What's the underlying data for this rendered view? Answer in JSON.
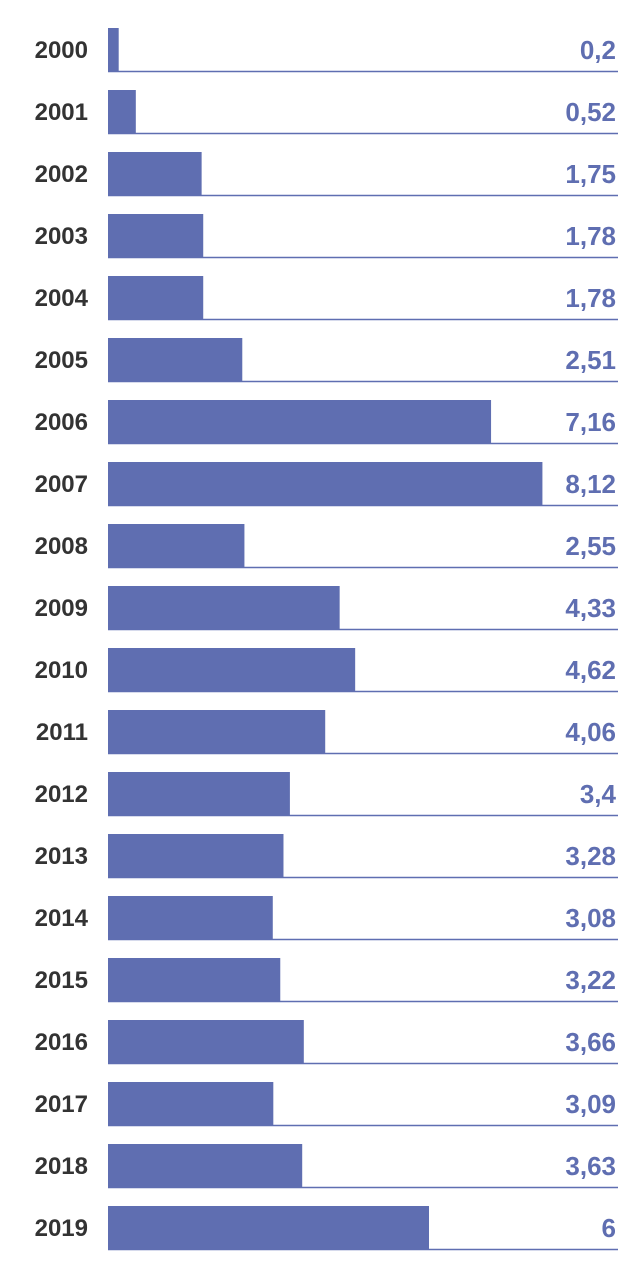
{
  "chart_data": {
    "type": "bar",
    "orientation": "horizontal",
    "categories": [
      "2000",
      "2001",
      "2002",
      "2003",
      "2004",
      "2005",
      "2006",
      "2007",
      "2008",
      "2009",
      "2010",
      "2011",
      "2012",
      "2013",
      "2014",
      "2015",
      "2016",
      "2017",
      "2018",
      "2019"
    ],
    "values": [
      0.2,
      0.52,
      1.75,
      1.78,
      1.78,
      2.51,
      7.16,
      8.12,
      2.55,
      4.33,
      4.62,
      4.06,
      3.4,
      3.28,
      3.08,
      3.22,
      3.66,
      3.09,
      3.63,
      6
    ],
    "value_labels": [
      "0,2",
      "0,52",
      "1,75",
      "1,78",
      "1,78",
      "2,51",
      "7,16",
      "8,12",
      "2,55",
      "4,33",
      "4,62",
      "4,06",
      "3,4",
      "3,28",
      "3,08",
      "3,22",
      "3,66",
      "3,09",
      "3,63",
      "6"
    ],
    "xlim": [
      0,
      10
    ],
    "grid": false,
    "legend": "none",
    "colors": {
      "bar": "#5f6eb1",
      "baseline": "#5f6eb1",
      "value_text": "#5f6eb1",
      "category_text": "#333333"
    }
  }
}
